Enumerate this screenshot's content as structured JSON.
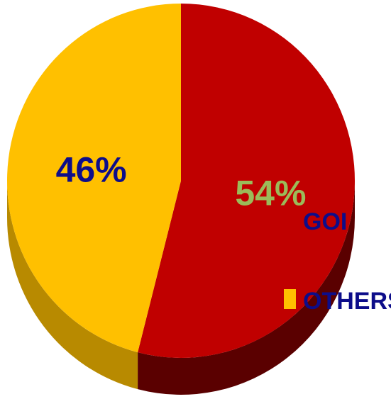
{
  "chart_data": {
    "type": "pie",
    "style": "3d",
    "slices": [
      {
        "label": "GOI",
        "value": 54,
        "display": "54%",
        "color": "#c00000",
        "side_color": "#5a0000",
        "label_color": "#9bbb59"
      },
      {
        "label": "OTHERS",
        "value": 46,
        "display": "46%",
        "color": "#ffc000",
        "side_color": "#b88a00",
        "label_color": "#0d0d8a"
      }
    ],
    "legend": {
      "placement": "right",
      "text_color": "#0d0d8a",
      "items": [
        "GOI",
        "OTHERS"
      ]
    }
  }
}
